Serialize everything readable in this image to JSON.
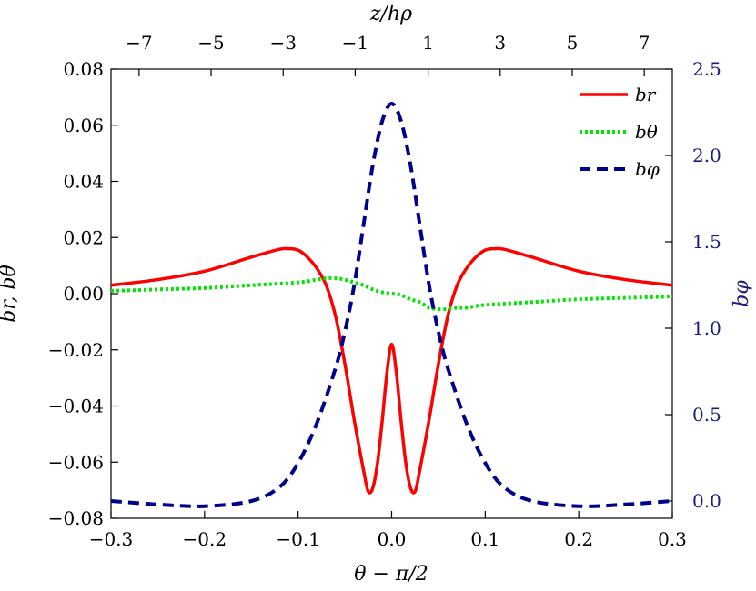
{
  "chart_data": {
    "type": "line",
    "xlabel": "θ − π/2",
    "x2label": "z/hρ",
    "ylabel": "br, bθ",
    "y2label": "bφ",
    "xlim": [
      -0.3,
      0.3
    ],
    "ylim": [
      -0.08,
      0.08
    ],
    "y2lim": [
      -0.1,
      2.5
    ],
    "xticks": [
      -0.3,
      -0.2,
      -0.1,
      0.0,
      0.1,
      0.2,
      0.3
    ],
    "xtick_labels": [
      "−0.3",
      "−0.2",
      "−0.1",
      "0.0",
      "0.1",
      "0.2",
      "0.3"
    ],
    "yticks": [
      -0.08,
      -0.06,
      -0.04,
      -0.02,
      0.0,
      0.02,
      0.04,
      0.06,
      0.08
    ],
    "ytick_labels": [
      "−0.08",
      "−0.06",
      "−0.04",
      "−0.02",
      "0.00",
      "0.02",
      "0.04",
      "0.06",
      "0.08"
    ],
    "y2ticks": [
      0.0,
      0.5,
      1.0,
      1.5,
      2.0,
      2.5
    ],
    "y2tick_labels": [
      "0.0",
      "0.5",
      "1.0",
      "1.5",
      "2.0",
      "2.5"
    ],
    "x2ticks": [
      0.27,
      0.193,
      0.116,
      0.039,
      -0.039,
      -0.116,
      -0.193,
      -0.27
    ],
    "x2tick_labels": [
      "7",
      "5",
      "3",
      "1",
      "−1",
      "−3",
      "−5",
      "−7"
    ],
    "legend_position": "top-right",
    "grid": false,
    "series": [
      {
        "name": "br",
        "axis": "left",
        "color": "#ff0000",
        "style": "solid",
        "x": [
          -0.3,
          -0.25,
          -0.2,
          -0.15,
          -0.12,
          -0.11,
          -0.1,
          -0.09,
          -0.08,
          -0.07,
          -0.06,
          -0.05,
          -0.04,
          -0.03,
          -0.025,
          -0.02,
          -0.015,
          -0.01,
          -0.005,
          0.0,
          0.005,
          0.01,
          0.015,
          0.02,
          0.025,
          0.03,
          0.04,
          0.05,
          0.06,
          0.07,
          0.08,
          0.09,
          0.1,
          0.11,
          0.12,
          0.15,
          0.2,
          0.25,
          0.3
        ],
        "y": [
          0.003,
          0.005,
          0.008,
          0.013,
          0.0158,
          0.016,
          0.0155,
          0.013,
          0.009,
          0.003,
          -0.008,
          -0.025,
          -0.045,
          -0.063,
          -0.0705,
          -0.069,
          -0.06,
          -0.045,
          -0.028,
          -0.018,
          -0.028,
          -0.045,
          -0.06,
          -0.069,
          -0.0705,
          -0.063,
          -0.045,
          -0.025,
          -0.008,
          0.003,
          0.009,
          0.013,
          0.0155,
          0.016,
          0.0158,
          0.013,
          0.008,
          0.005,
          0.003
        ]
      },
      {
        "name": "bθ",
        "axis": "left",
        "color": "#00e600",
        "style": "dotted",
        "x": [
          -0.3,
          -0.25,
          -0.2,
          -0.15,
          -0.1,
          -0.08,
          -0.07,
          -0.06,
          -0.05,
          -0.04,
          -0.03,
          -0.02,
          -0.01,
          0.0,
          0.01,
          0.02,
          0.03,
          0.04,
          0.05,
          0.06,
          0.07,
          0.08,
          0.1,
          0.15,
          0.2,
          0.25,
          0.3
        ],
        "y": [
          0.001,
          0.0015,
          0.002,
          0.003,
          0.004,
          0.005,
          0.0055,
          0.0055,
          0.005,
          0.004,
          0.003,
          0.0015,
          0.0005,
          0.0,
          -0.0005,
          -0.002,
          -0.003,
          -0.005,
          -0.0055,
          -0.0055,
          -0.005,
          -0.005,
          -0.004,
          -0.003,
          -0.002,
          -0.0015,
          -0.001
        ]
      },
      {
        "name": "bφ",
        "axis": "right",
        "color": "#00008b",
        "style": "dashed",
        "x": [
          -0.3,
          -0.25,
          -0.2,
          -0.15,
          -0.12,
          -0.1,
          -0.08,
          -0.06,
          -0.05,
          -0.04,
          -0.03,
          -0.02,
          -0.01,
          0.0,
          0.01,
          0.02,
          0.03,
          0.04,
          0.05,
          0.06,
          0.08,
          0.1,
          0.12,
          0.15,
          0.2,
          0.25,
          0.3
        ],
        "y": [
          0.0,
          -0.02,
          -0.03,
          0.0,
          0.08,
          0.22,
          0.45,
          0.77,
          0.98,
          1.25,
          1.6,
          1.95,
          2.2,
          2.3,
          2.2,
          1.95,
          1.6,
          1.25,
          0.98,
          0.77,
          0.45,
          0.22,
          0.08,
          0.0,
          -0.03,
          -0.02,
          0.0
        ]
      }
    ]
  }
}
